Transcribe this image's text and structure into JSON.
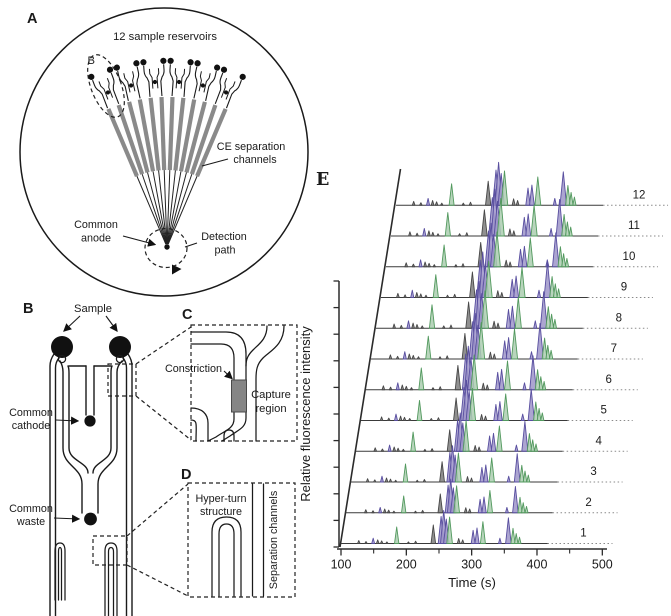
{
  "figure": {
    "panel_a": {
      "label": "A",
      "caption": "12 sample reservoirs",
      "inset_label": "B",
      "ce_channels_label": [
        "CE separation",
        "channels"
      ],
      "common_anode_label": [
        "Common",
        "anode"
      ],
      "detection_path_label": [
        "Detection",
        "path"
      ]
    },
    "panel_b": {
      "label": "B",
      "sample_label": "Sample",
      "common_cathode_label": [
        "Common",
        "cathode"
      ],
      "common_waste_label": [
        "Common",
        "waste"
      ]
    },
    "panel_c": {
      "label": "C",
      "constriction_label": "Constriction",
      "capture_region_label": [
        "Capture",
        "region"
      ]
    },
    "panel_d": {
      "label": "D",
      "hyper_turn_label": [
        "Hyper-turn",
        "structure"
      ],
      "separation_channels_label": "Separation channels"
    },
    "panel_e": {
      "label": "E"
    }
  },
  "chart_data": {
    "type": "line",
    "subtype": "waterfall of 12 stacked CE electropherogram traces",
    "xlabel": "Time (s)",
    "ylabel": "Relative fluorescence intensity",
    "xlim": [
      100,
      500
    ],
    "x_ticks": [
      100,
      200,
      300,
      400,
      500
    ],
    "x_minor_ticks": [
      150,
      250,
      350,
      450
    ],
    "y_tick_count": 11,
    "grid": false,
    "legend": "none",
    "colors": {
      "d": {
        "name": "dark-gray-peak",
        "stroke": "#474747",
        "fill": "#7d7d7d"
      },
      "p": {
        "name": "purple-peak",
        "stroke": "#584e9f",
        "fill": "#9d95c9"
      },
      "g": {
        "name": "green-peak",
        "stroke": "#52995e",
        "fill": "#abceb0"
      }
    },
    "peak_template_t_h_color": [
      [
        128,
        0.09,
        "d"
      ],
      [
        139,
        0.06,
        "d"
      ],
      [
        150,
        0.16,
        "p"
      ],
      [
        157,
        0.11,
        "d"
      ],
      [
        163,
        0.08,
        "d"
      ],
      [
        171,
        0.05,
        "d"
      ],
      [
        186,
        0.5,
        "g"
      ],
      [
        204,
        0.05,
        "d"
      ],
      [
        215,
        0.07,
        "d"
      ],
      [
        242,
        0.56,
        "d"
      ],
      [
        254,
        0.82,
        "p"
      ],
      [
        258,
        1.0,
        "p"
      ],
      [
        262,
        0.74,
        "p"
      ],
      [
        267,
        0.8,
        "g"
      ],
      [
        281,
        0.15,
        "d"
      ],
      [
        287,
        0.11,
        "d"
      ],
      [
        303,
        0.4,
        "p"
      ],
      [
        309,
        0.47,
        "p"
      ],
      [
        318,
        0.66,
        "g"
      ],
      [
        344,
        0.16,
        "p"
      ],
      [
        357,
        0.78,
        "p"
      ],
      [
        364,
        0.46,
        "g"
      ],
      [
        369,
        0.3,
        "g"
      ],
      [
        374,
        0.19,
        "g"
      ]
    ],
    "traces": [
      {
        "label": "1",
        "amp": 1.0,
        "dt": 0
      },
      {
        "label": "2",
        "amp": 1.02,
        "dt": 3
      },
      {
        "label": "3",
        "amp": 1.1,
        "dt": -2
      },
      {
        "label": "4",
        "amp": 1.16,
        "dt": 2
      },
      {
        "label": "5",
        "amp": 1.22,
        "dt": 4
      },
      {
        "label": "6",
        "amp": 1.32,
        "dt": -1
      },
      {
        "label": "7",
        "amp": 1.38,
        "dt": 2
      },
      {
        "label": "8",
        "amp": 1.42,
        "dt": 0
      },
      {
        "label": "9",
        "amp": 1.38,
        "dt": -2
      },
      {
        "label": "10",
        "amp": 1.32,
        "dt": 3
      },
      {
        "label": "11",
        "amp": 1.42,
        "dt": 1
      },
      {
        "label": "12",
        "amp": 1.3,
        "dt": -1
      }
    ]
  }
}
